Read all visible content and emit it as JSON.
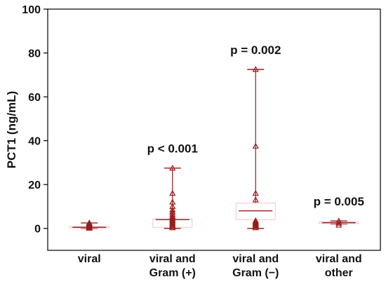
{
  "chart_data": {
    "type": "box",
    "ylabel": "PCT1 (ng/mL)",
    "ylim": [
      -10,
      100
    ],
    "yticks": [
      0,
      20,
      40,
      60,
      80,
      100
    ],
    "grid": false,
    "categories": [
      {
        "lines": [
          "viral"
        ]
      },
      {
        "lines": [
          "viral and",
          "Gram (+)"
        ]
      },
      {
        "lines": [
          "viral and",
          "Gram (−)"
        ]
      },
      {
        "lines": [
          "viral and",
          "other"
        ]
      }
    ],
    "boxes": [
      {
        "whisker_low": 0.0,
        "q1": 0.2,
        "median": 0.5,
        "q3": 0.9,
        "whisker_high": 2.5,
        "points": [
          0.1,
          0.3,
          0.6,
          0.8,
          1.0,
          1.2,
          1.4,
          1.6,
          1.9,
          2.3,
          2.5
        ],
        "p_value": ""
      },
      {
        "whisker_low": 0.0,
        "q1": 0.5,
        "median": 4.0,
        "q3": 4.3,
        "whisker_high": 27.5,
        "points": [
          0.3,
          0.8,
          1.2,
          1.8,
          2.4,
          3.0,
          3.6,
          4.2,
          4.8,
          5.5,
          6.5,
          7.5,
          8.5,
          10.0,
          12.0,
          16.0,
          27.5
        ],
        "p_value": "p < 0.001"
      },
      {
        "whisker_low": 0.0,
        "q1": 4.0,
        "median": 8.0,
        "q3": 11.5,
        "whisker_high": 72.5,
        "points": [
          0.3,
          0.8,
          1.2,
          1.6,
          2.0,
          2.5,
          3.0,
          3.5,
          13.0,
          16.0,
          37.5,
          72.5
        ],
        "p_value": "p = 0.002"
      },
      {
        "whisker_low": 2.0,
        "q1": 2.2,
        "median": 2.6,
        "q3": 3.0,
        "whisker_high": 3.4,
        "points": [
          1.5,
          2.4,
          3.4
        ],
        "p_value": "p = 0.005"
      }
    ],
    "colors": {
      "series": "#9b1b1b",
      "box_edge": "#f2c6c6",
      "axis": "#000000"
    }
  }
}
